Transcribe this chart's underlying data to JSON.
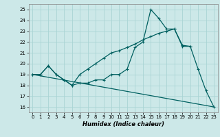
{
  "xlabel": "Humidex (Indice chaleur)",
  "bg_color": "#cce8e8",
  "grid_color": "#aad4d4",
  "line_color": "#006060",
  "xlim": [
    -0.5,
    23.5
  ],
  "ylim": [
    15.5,
    25.5
  ],
  "yticks": [
    16,
    17,
    18,
    19,
    20,
    21,
    22,
    23,
    24,
    25
  ],
  "xticks": [
    0,
    1,
    2,
    3,
    4,
    5,
    6,
    7,
    8,
    9,
    10,
    11,
    12,
    13,
    14,
    15,
    16,
    17,
    18,
    19,
    20,
    21,
    22,
    23
  ],
  "line1_x": [
    0,
    1,
    2,
    3,
    4,
    5,
    6,
    7,
    8,
    9,
    10,
    11,
    12,
    13,
    14,
    15,
    16,
    17,
    18,
    19,
    20,
    21,
    22,
    23
  ],
  "line1_y": [
    19.0,
    19.0,
    19.8,
    19.0,
    18.5,
    18.0,
    18.2,
    18.2,
    18.5,
    18.5,
    19.0,
    19.0,
    19.5,
    21.5,
    22.0,
    25.0,
    24.2,
    23.2,
    23.2,
    21.6,
    21.6,
    19.5,
    17.5,
    16.0
  ],
  "line2_x": [
    0,
    1,
    2,
    3,
    4,
    5,
    6,
    7,
    8,
    9,
    10,
    11,
    12,
    13,
    14,
    15,
    16,
    17,
    18,
    19,
    20
  ],
  "line2_y": [
    19.0,
    19.0,
    19.8,
    19.0,
    18.5,
    18.0,
    19.0,
    19.5,
    20.0,
    20.5,
    21.0,
    21.2,
    21.5,
    21.8,
    22.2,
    22.5,
    22.8,
    23.0,
    23.2,
    21.7,
    21.6
  ],
  "line3_x": [
    0,
    23
  ],
  "line3_y": [
    19.0,
    16.0
  ]
}
